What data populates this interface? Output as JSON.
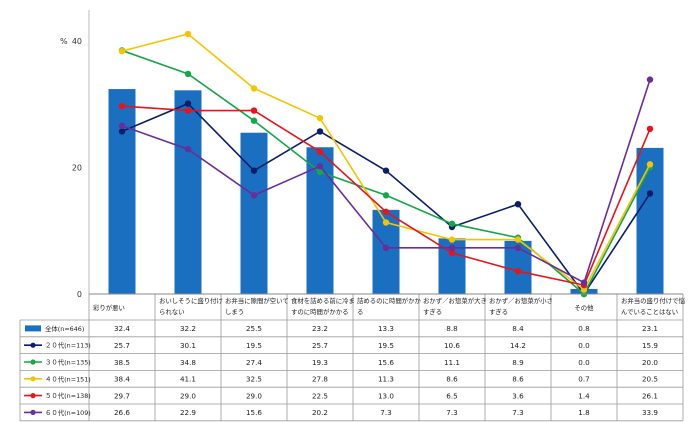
{
  "chart_data": {
    "type": "bar",
    "unit_label": "%",
    "ylim": [
      0,
      40
    ],
    "yticks": [
      0,
      20,
      40
    ],
    "grid": false,
    "legend_placement": "table-left",
    "categories": [
      [
        "彩りが悪い"
      ],
      [
        "おいしそうに盛り付け",
        "られない"
      ],
      [
        "お弁当に隙間が空いて",
        "しまう"
      ],
      [
        "食材を詰める前に冷ま",
        "すのに時間がかかる"
      ],
      [
        "詰めるのに時間がかか",
        "る"
      ],
      [
        "おかず／お惣菜が大き",
        "すぎる"
      ],
      [
        "おかず／お惣菜が小さ",
        "すぎる"
      ],
      [
        "その他"
      ],
      [
        "お弁当の盛り付けで悩",
        "んでいることはない"
      ]
    ],
    "series": [
      {
        "name": "全体(n=646)",
        "kind": "bar",
        "color": "#1a6fc0",
        "values": [
          32.4,
          32.2,
          25.5,
          23.2,
          13.3,
          8.8,
          8.4,
          0.8,
          23.1
        ]
      },
      {
        "name": "２０代(n=113)",
        "kind": "line",
        "color": "#0a1f6b",
        "values": [
          25.7,
          30.1,
          19.5,
          25.7,
          19.5,
          10.6,
          14.2,
          0.0,
          15.9
        ]
      },
      {
        "name": "３０代(n=135)",
        "kind": "line",
        "color": "#17a64a",
        "values": [
          38.5,
          34.8,
          27.4,
          19.3,
          15.6,
          11.1,
          8.9,
          0.0,
          20.0
        ]
      },
      {
        "name": "４０代(n=151)",
        "kind": "line",
        "color": "#f5c400",
        "values": [
          38.4,
          41.1,
          32.5,
          27.8,
          11.3,
          8.6,
          8.6,
          0.7,
          20.5
        ]
      },
      {
        "name": "５０代(n=138)",
        "kind": "line",
        "color": "#e8141b",
        "values": [
          29.7,
          29.0,
          29.0,
          22.5,
          13.0,
          6.5,
          3.6,
          1.4,
          26.1
        ]
      },
      {
        "name": "６０代(n=109)",
        "kind": "line",
        "color": "#6a2d9a",
        "values": [
          26.6,
          22.9,
          15.6,
          20.2,
          7.3,
          7.3,
          7.3,
          1.8,
          33.9
        ]
      }
    ]
  }
}
